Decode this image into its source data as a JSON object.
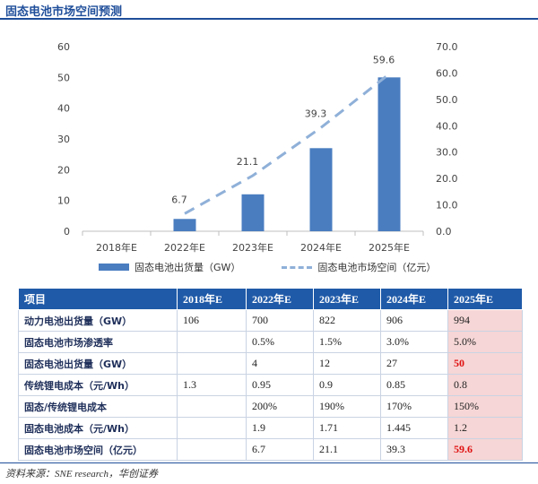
{
  "header": {
    "title": "固态电池市场空间预测"
  },
  "chart_data": {
    "type": "bar",
    "categories": [
      "2018年E",
      "2022年E",
      "2023年E",
      "2024年E",
      "2025年E"
    ],
    "series": [
      {
        "name": "固态电池出货量（GW）",
        "type": "bar",
        "axis": "left",
        "values": [
          0,
          4,
          12,
          27,
          50
        ]
      },
      {
        "name": "固态电池市场空间（亿元）",
        "type": "line",
        "axis": "right",
        "values": [
          null,
          6.7,
          21.1,
          39.3,
          59.6
        ],
        "labels": [
          "",
          "6.7",
          "21.1",
          "39.3",
          "59.6"
        ]
      }
    ],
    "y_left": {
      "ylim": [
        0,
        60
      ],
      "ticks": [
        "0",
        "10",
        "20",
        "30",
        "40",
        "50",
        "60"
      ]
    },
    "y_right": {
      "ylim": [
        0,
        70
      ],
      "ticks": [
        "0.0",
        "10.0",
        "20.0",
        "30.0",
        "40.0",
        "50.0",
        "60.0",
        "70.0"
      ]
    },
    "legend_position": "bottom",
    "colors": {
      "bar": "#4a7dc0",
      "line": "#8fb0d8"
    }
  },
  "table": {
    "headers": [
      "项目",
      "2018年E",
      "2022年E",
      "2023年E",
      "2024年E",
      "2025年E"
    ],
    "rows": [
      {
        "label": "动力电池出货量（GW）",
        "cells": [
          "106",
          "700",
          "822",
          "906",
          "994"
        ],
        "red": false
      },
      {
        "label": "固态电池市场渗透率",
        "cells": [
          "",
          "0.5%",
          "1.5%",
          "3.0%",
          "5.0%"
        ],
        "red": false
      },
      {
        "label": "固态电池出货量（GW）",
        "cells": [
          "",
          "4",
          "12",
          "27",
          "50"
        ],
        "red": true
      },
      {
        "label": "传统锂电成本（元/Wh）",
        "cells": [
          "1.3",
          "0.95",
          "0.9",
          "0.85",
          "0.8"
        ],
        "red": false
      },
      {
        "label": "固态/传统锂电成本",
        "cells": [
          "",
          "200%",
          "190%",
          "170%",
          "150%"
        ],
        "red": false
      },
      {
        "label": "固态电池成本（元/Wh）",
        "cells": [
          "",
          "1.9",
          "1.71",
          "1.445",
          "1.2"
        ],
        "red": false
      },
      {
        "label": "固态电池市场空间（亿元）",
        "cells": [
          "",
          "6.7",
          "21.1",
          "39.3",
          "59.6"
        ],
        "red": true
      }
    ],
    "highlight_color": "#f6d6d6",
    "header_color": "#1f5aa8"
  },
  "footer": {
    "source": "资料来源：SNE research，华创证券"
  }
}
